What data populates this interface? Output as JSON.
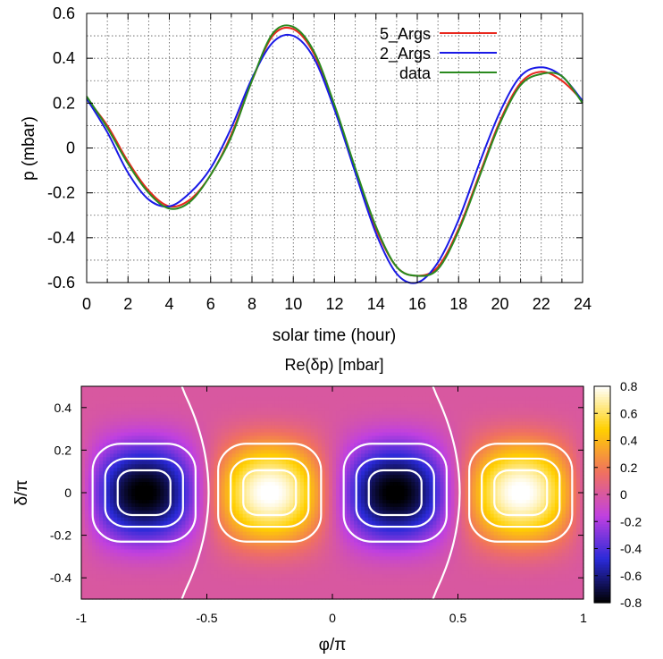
{
  "chart_data": [
    {
      "type": "line",
      "title": "",
      "xlabel": "solar time (hour)",
      "ylabel": "p (mbar)",
      "xlim": [
        0,
        24
      ],
      "ylim": [
        -0.6,
        0.6
      ],
      "x_ticks": [
        "0",
        "2",
        "4",
        "6",
        "8",
        "10",
        "12",
        "14",
        "16",
        "18",
        "20",
        "22",
        "24"
      ],
      "y_ticks": [
        "-0.6",
        "-0.4",
        "-0.2",
        "0",
        "0.2",
        "0.4",
        "0.6"
      ],
      "grid": true,
      "legend_position": "top-right",
      "series": [
        {
          "name": "5_Args",
          "color": "#e8281e",
          "x": [
            0,
            1,
            2,
            3,
            4,
            5,
            6,
            7,
            8,
            9,
            10,
            11,
            12,
            13,
            14,
            15,
            16,
            17,
            18,
            19,
            20,
            21,
            22,
            23,
            24
          ],
          "y": [
            0.22,
            0.1,
            -0.06,
            -0.19,
            -0.26,
            -0.23,
            -0.12,
            0.06,
            0.3,
            0.5,
            0.53,
            0.42,
            0.18,
            -0.1,
            -0.36,
            -0.53,
            -0.57,
            -0.53,
            -0.36,
            -0.12,
            0.12,
            0.29,
            0.34,
            0.3,
            0.21
          ]
        },
        {
          "name": "2_Args",
          "color": "#1a1ae6",
          "x": [
            0,
            1,
            2,
            3,
            4,
            5,
            6,
            7,
            8,
            9,
            10,
            11,
            12,
            13,
            14,
            15,
            16,
            17,
            18,
            19,
            20,
            21,
            22,
            23,
            24
          ],
          "y": [
            0.22,
            0.07,
            -0.11,
            -0.23,
            -0.26,
            -0.2,
            -0.09,
            0.09,
            0.31,
            0.47,
            0.5,
            0.4,
            0.17,
            -0.11,
            -0.38,
            -0.56,
            -0.6,
            -0.51,
            -0.32,
            -0.07,
            0.16,
            0.32,
            0.36,
            0.32,
            0.21
          ]
        },
        {
          "name": "data",
          "color": "#2a8a1e",
          "x": [
            0,
            1,
            2,
            3,
            4,
            5,
            6,
            7,
            8,
            9,
            10,
            11,
            12,
            13,
            14,
            15,
            16,
            17,
            18,
            19,
            20,
            21,
            22,
            23,
            24
          ],
          "y": [
            0.23,
            0.09,
            -0.07,
            -0.2,
            -0.27,
            -0.24,
            -0.12,
            0.05,
            0.3,
            0.51,
            0.54,
            0.43,
            0.19,
            -0.09,
            -0.35,
            -0.53,
            -0.57,
            -0.54,
            -0.37,
            -0.13,
            0.11,
            0.28,
            0.33,
            0.32,
            0.2
          ]
        }
      ]
    },
    {
      "type": "heatmap",
      "title": "Re(δp) [mbar]",
      "xlabel": "φ/π",
      "ylabel": "δ/π",
      "xlim": [
        -1,
        1
      ],
      "ylim": [
        -0.5,
        0.5
      ],
      "x_ticks": [
        "-1",
        "-0.5",
        "0",
        "0.5",
        "1"
      ],
      "y_ticks": [
        "-0.4",
        "-0.2",
        "0",
        "0.2",
        "0.4"
      ],
      "colorbar": {
        "range": [
          -0.8,
          0.8
        ],
        "ticks": [
          "-0.8",
          "-0.6",
          "-0.4",
          "-0.2",
          "0",
          "0.2",
          "0.4",
          "0.6",
          "0.8"
        ],
        "palette": [
          "#000000",
          "#2a2ad8",
          "#c040e0",
          "#f07060",
          "#ffd000",
          "#ffffff"
        ]
      },
      "field": "0.82 * cos(2φ + 0.5π) * cos(πδ)^3.5",
      "contour_color": "#ffffff"
    }
  ]
}
